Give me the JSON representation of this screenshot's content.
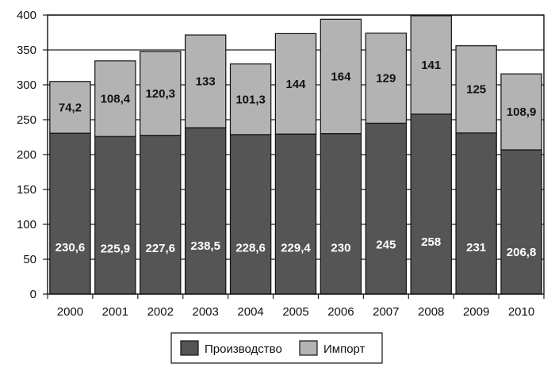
{
  "chart_data": {
    "type": "bar",
    "stacked": true,
    "categories": [
      "2000",
      "2001",
      "2002",
      "2003",
      "2004",
      "2005",
      "2006",
      "2007",
      "2008",
      "2009",
      "2010"
    ],
    "series": [
      {
        "name": "Производство",
        "values": [
          230.6,
          225.9,
          227.6,
          238.5,
          228.6,
          229.4,
          230,
          245,
          258,
          231,
          206.8
        ],
        "labels": [
          "230,6",
          "225,9",
          "227,6",
          "238,5",
          "228,6",
          "229,4",
          "230",
          "245",
          "258",
          "231",
          "206,8"
        ],
        "color": "#555555",
        "label_color": "#ffffff"
      },
      {
        "name": "Импорт",
        "values": [
          74.2,
          108.4,
          120.3,
          133,
          101.3,
          144,
          164,
          129,
          141,
          125,
          108.9
        ],
        "labels": [
          "74,2",
          "108,4",
          "120,3",
          "133",
          "101,3",
          "144",
          "164",
          "129",
          "141",
          "125",
          "108,9"
        ],
        "color": "#b3b3b3",
        "label_color": "#111111"
      }
    ],
    "title": "",
    "xlabel": "",
    "ylabel": "",
    "ylim": [
      0,
      400
    ],
    "yticks": [
      0,
      50,
      100,
      150,
      200,
      250,
      300,
      350,
      400
    ],
    "grid": "horizontal",
    "legend": "bottom-center"
  }
}
